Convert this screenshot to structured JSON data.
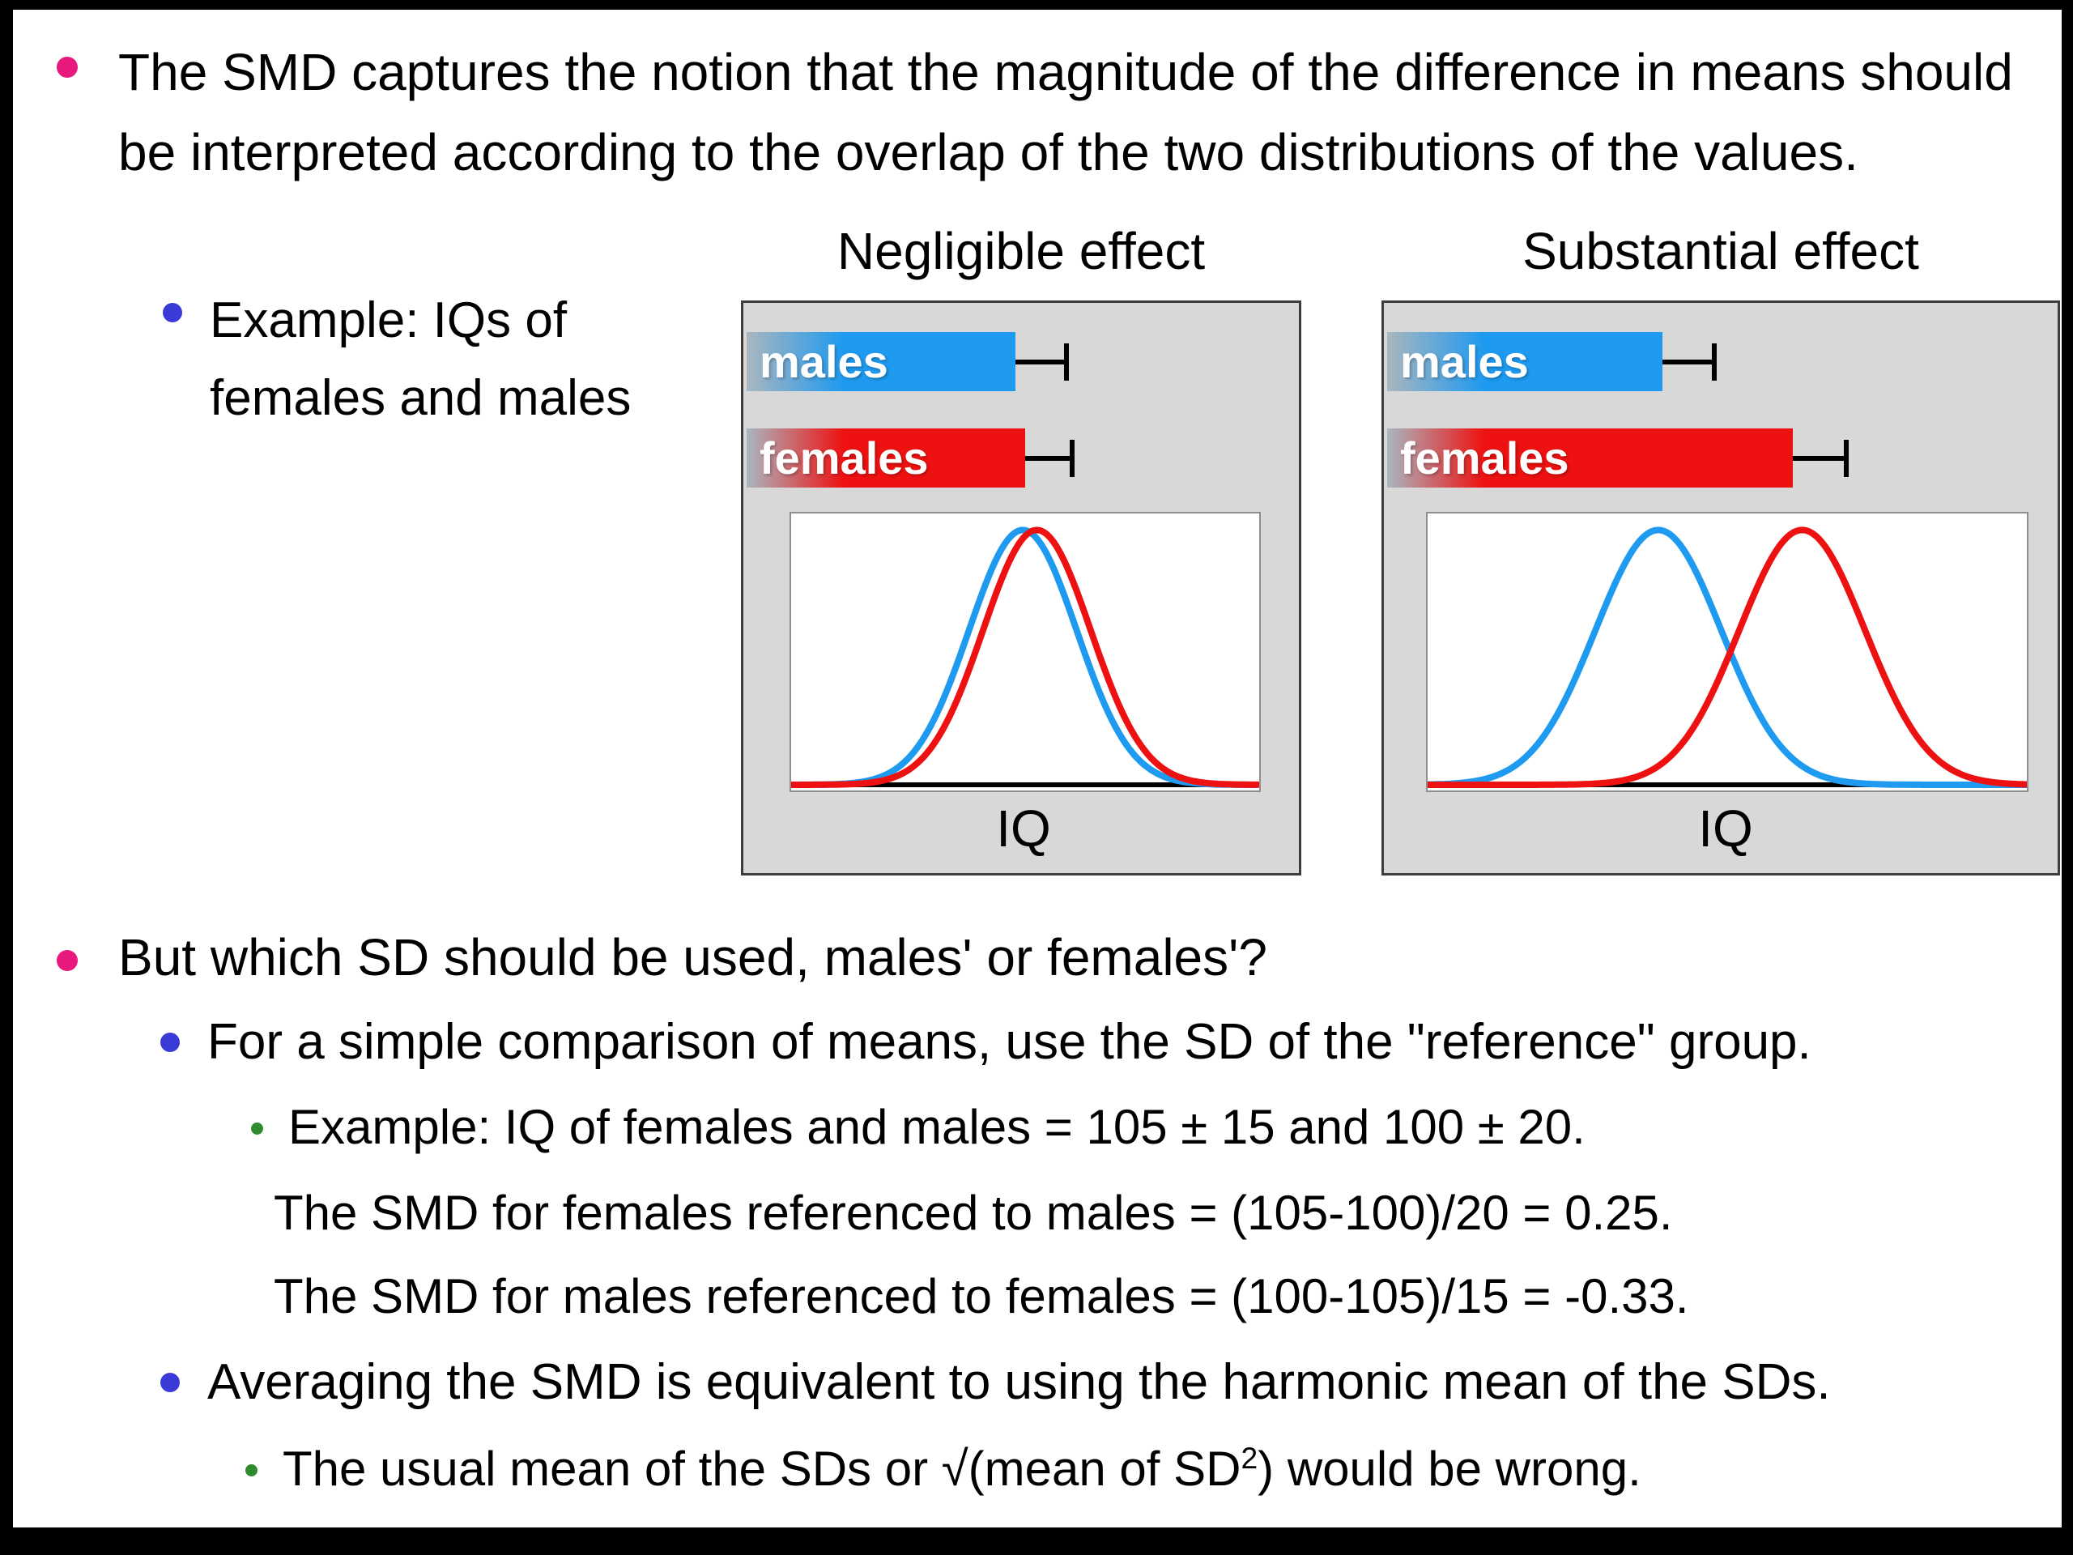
{
  "slide": {
    "bullets": {
      "b1": "The SMD captures the notion that the magnitude of the difference in means should be interpreted according to the overlap of the two distributions of the values.",
      "b1_sub": "Example: IQs of females and males",
      "b2": "But which SD should be used, males' or females'?",
      "b2_sub1": "For a simple comparison of means, use the SD of the \"reference\" group.",
      "b2_sub1_ex1": "Example: IQ of females and males = 105 ± 15 and 100 ± 20.",
      "b2_sub1_ex2": "The SMD for females referenced to males = (105-100)/20 = 0.25.",
      "b2_sub1_ex3": "The SMD for males referenced to females = (100-105)/15 = -0.33.",
      "b2_sub2": "Averaging the SMD is equivalent to using the harmonic mean of the SDs.",
      "b2_sub2_ex_prefix": "The usual mean of the SDs or √(mean of SD",
      "b2_sub2_ex_sup": "2",
      "b2_sub2_ex_suffix": ") would be wrong."
    },
    "colors": {
      "bullet_level1": "#e8197d",
      "bullet_level2": "#3a3ad6",
      "bullet_level3": "#2e8b2e",
      "panel_bg": "#d8d8d8",
      "males_color": "#1e9af0",
      "females_color": "#ee1111",
      "axis_color": "#000000"
    }
  },
  "chart_data": [
    {
      "type": "bar",
      "title": "Negligible effect",
      "xlabel": "IQ",
      "bars": [
        {
          "label": "males",
          "color": "#1e9af0",
          "length": 0.491,
          "whisker_end": 0.585
        },
        {
          "label": "females",
          "color": "#ee1111",
          "length": 0.509,
          "whisker_end": 0.595
        }
      ],
      "curves": [
        {
          "name": "males",
          "color": "#1e9af0",
          "mean": 0.495,
          "sd": 0.115
        },
        {
          "name": "females",
          "color": "#ee1111",
          "mean": 0.525,
          "sd": 0.115
        }
      ],
      "note": "distributions almost completely overlap"
    },
    {
      "type": "bar",
      "title": "Substantial effect",
      "xlabel": "IQ",
      "bars": [
        {
          "label": "males",
          "color": "#1e9af0",
          "length": 0.414,
          "whisker_end": 0.492
        },
        {
          "label": "females",
          "color": "#ee1111",
          "length": 0.609,
          "whisker_end": 0.69
        }
      ],
      "curves": [
        {
          "name": "males",
          "color": "#1e9af0",
          "mean": 0.385,
          "sd": 0.105
        },
        {
          "name": "females",
          "color": "#ee1111",
          "mean": 0.625,
          "sd": 0.105
        }
      ],
      "note": "distributions clearly separated"
    }
  ]
}
